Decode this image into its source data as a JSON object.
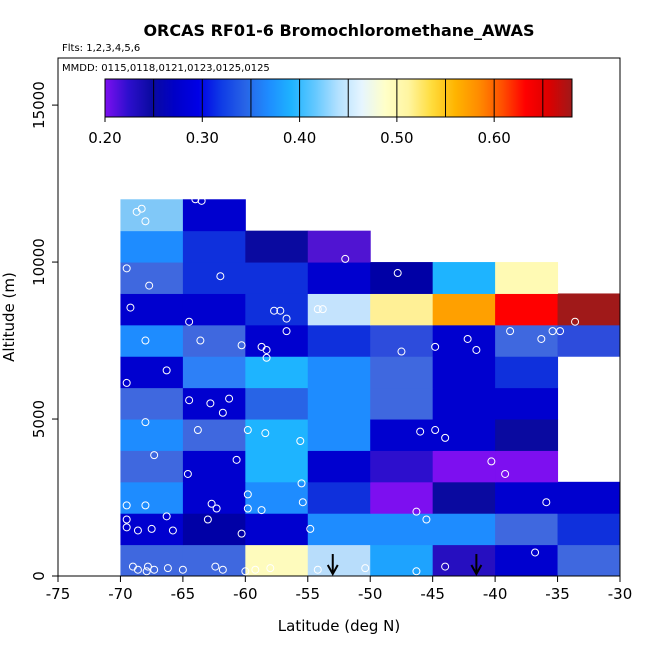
{
  "chart_data": {
    "type": "heatmap",
    "title": "ORCAS RF01-6 Bromochloromethane_AWAS",
    "flights_label": "Flts: 1,2,3,4,5,6",
    "dates_label": "MMDD: 0115,0118,0121,0123,0125,0125",
    "xlabel": "Latitude (deg N)",
    "ylabel": "Altitude (m)",
    "xlim": [
      -75,
      -30
    ],
    "ylim": [
      0,
      16500
    ],
    "x_ticks": [
      "-75",
      "-70",
      "-65",
      "-60",
      "-55",
      "-50",
      "-45",
      "-40",
      "-35",
      "-30"
    ],
    "x_tick_values": [
      -75,
      -70,
      -65,
      -60,
      -55,
      -50,
      -45,
      -40,
      -35,
      -30
    ],
    "y_ticks": [
      "0",
      "5000",
      "10000",
      "15000"
    ],
    "y_tick_values": [
      0,
      5000,
      10000,
      15000
    ],
    "colorbar": {
      "range": [
        0.2,
        0.68
      ],
      "tick_labels": [
        "0.20",
        "0.30",
        "0.40",
        "0.50",
        "0.60"
      ],
      "tick_values": [
        0.2,
        0.3,
        0.4,
        0.5,
        0.6
      ],
      "colors": [
        "#7d0ff0",
        "#2d0fcd",
        "#0a0aa0",
        "#0000c8",
        "#0000e6",
        "#0f3ce6",
        "#2864e6",
        "#1e8cff",
        "#1eb4ff",
        "#64c8ff",
        "#b4e1ff",
        "#e6f5ff",
        "#ffffc8",
        "#fff5a0",
        "#ffdc3c",
        "#ffb400",
        "#ff8c00",
        "#ff5000",
        "#ff0000",
        "#dc0000",
        "#a01919"
      ],
      "breaks": [
        0.2,
        0.25,
        0.3,
        0.35,
        0.4,
        0.45,
        0.5,
        0.55,
        0.6,
        0.65
      ]
    },
    "cell_lat_width": 5,
    "cell_alt_height": 1000,
    "cells": [
      {
        "lat": -70,
        "alt": 0,
        "color": "#3f68df"
      },
      {
        "lat": -65,
        "alt": 0,
        "color": "#3f68df"
      },
      {
        "lat": -60,
        "alt": 0,
        "color": "#fefbbd"
      },
      {
        "lat": -55,
        "alt": 0,
        "color": "#b8ddfb"
      },
      {
        "lat": -50,
        "alt": 0,
        "color": "#1ea3fe"
      },
      {
        "lat": -45,
        "alt": 0,
        "color": "#260fc0"
      },
      {
        "lat": -40,
        "alt": 0,
        "color": "#0000cf"
      },
      {
        "lat": -35,
        "alt": 0,
        "color": "#3f68df"
      },
      {
        "lat": -70,
        "alt": 1000,
        "color": "#0000cf"
      },
      {
        "lat": -65,
        "alt": 1000,
        "color": "#0000a6"
      },
      {
        "lat": -60,
        "alt": 1000,
        "color": "#0000cf"
      },
      {
        "lat": -55,
        "alt": 1000,
        "color": "#1e8cff"
      },
      {
        "lat": -50,
        "alt": 1000,
        "color": "#1e8cff"
      },
      {
        "lat": -45,
        "alt": 1000,
        "color": "#1e8cff"
      },
      {
        "lat": -40,
        "alt": 1000,
        "color": "#3f68df"
      },
      {
        "lat": -35,
        "alt": 1000,
        "color": "#0f30dc"
      },
      {
        "lat": -70,
        "alt": 2000,
        "color": "#1e8cff"
      },
      {
        "lat": -65,
        "alt": 2000,
        "color": "#0000cf"
      },
      {
        "lat": -60,
        "alt": 2000,
        "color": "#1e8cff"
      },
      {
        "lat": -55,
        "alt": 2000,
        "color": "#0f30dc"
      },
      {
        "lat": -50,
        "alt": 2000,
        "color": "#7d0ff0"
      },
      {
        "lat": -45,
        "alt": 2000,
        "color": "#0a0aa0"
      },
      {
        "lat": -40,
        "alt": 2000,
        "color": "#0000cf"
      },
      {
        "lat": -35,
        "alt": 2000,
        "color": "#0000cf"
      },
      {
        "lat": -70,
        "alt": 3000,
        "color": "#3f68df"
      },
      {
        "lat": -65,
        "alt": 3000,
        "color": "#0000cf"
      },
      {
        "lat": -60,
        "alt": 3000,
        "color": "#1eb4ff"
      },
      {
        "lat": -55,
        "alt": 3000,
        "color": "#0000cf"
      },
      {
        "lat": -50,
        "alt": 3000,
        "color": "#2d0fcd"
      },
      {
        "lat": -45,
        "alt": 3000,
        "color": "#7d0ff0"
      },
      {
        "lat": -40,
        "alt": 3000,
        "color": "#7d0ff0"
      },
      {
        "lat": -70,
        "alt": 4000,
        "color": "#1e8cff"
      },
      {
        "lat": -65,
        "alt": 4000,
        "color": "#3f68df"
      },
      {
        "lat": -60,
        "alt": 4000,
        "color": "#1eb4ff"
      },
      {
        "lat": -55,
        "alt": 4000,
        "color": "#1e8cff"
      },
      {
        "lat": -50,
        "alt": 4000,
        "color": "#0000cf"
      },
      {
        "lat": -45,
        "alt": 4000,
        "color": "#0000cf"
      },
      {
        "lat": -40,
        "alt": 4000,
        "color": "#0a0aa0"
      },
      {
        "lat": -70,
        "alt": 5000,
        "color": "#3f68df"
      },
      {
        "lat": -65,
        "alt": 5000,
        "color": "#0000cf"
      },
      {
        "lat": -60,
        "alt": 5000,
        "color": "#2864e6"
      },
      {
        "lat": -55,
        "alt": 5000,
        "color": "#1e8cff"
      },
      {
        "lat": -50,
        "alt": 5000,
        "color": "#3f68df"
      },
      {
        "lat": -45,
        "alt": 5000,
        "color": "#0000cf"
      },
      {
        "lat": -40,
        "alt": 5000,
        "color": "#0000cf"
      },
      {
        "lat": -70,
        "alt": 6000,
        "color": "#0000cf"
      },
      {
        "lat": -65,
        "alt": 6000,
        "color": "#2d80f7"
      },
      {
        "lat": -60,
        "alt": 6000,
        "color": "#1eb4ff"
      },
      {
        "lat": -55,
        "alt": 6000,
        "color": "#1e8cff"
      },
      {
        "lat": -50,
        "alt": 6000,
        "color": "#3f68df"
      },
      {
        "lat": -45,
        "alt": 6000,
        "color": "#0000cf"
      },
      {
        "lat": -40,
        "alt": 6000,
        "color": "#0f30dc"
      },
      {
        "lat": -70,
        "alt": 7000,
        "color": "#1e8cff"
      },
      {
        "lat": -65,
        "alt": 7000,
        "color": "#3f68df"
      },
      {
        "lat": -60,
        "alt": 7000,
        "color": "#0000cf"
      },
      {
        "lat": -55,
        "alt": 7000,
        "color": "#0f30dc"
      },
      {
        "lat": -50,
        "alt": 7000,
        "color": "#2d4cdc"
      },
      {
        "lat": -45,
        "alt": 7000,
        "color": "#0000cf"
      },
      {
        "lat": -40,
        "alt": 7000,
        "color": "#3f68df"
      },
      {
        "lat": -35,
        "alt": 7000,
        "color": "#2d4cdc"
      },
      {
        "lat": -70,
        "alt": 8000,
        "color": "#0000cf"
      },
      {
        "lat": -65,
        "alt": 8000,
        "color": "#0000cf"
      },
      {
        "lat": -60,
        "alt": 8000,
        "color": "#0f30dc"
      },
      {
        "lat": -55,
        "alt": 8000,
        "color": "#c4e3fd"
      },
      {
        "lat": -50,
        "alt": 8000,
        "color": "#fff096"
      },
      {
        "lat": -45,
        "alt": 8000,
        "color": "#ffa000"
      },
      {
        "lat": -40,
        "alt": 8000,
        "color": "#ff0000"
      },
      {
        "lat": -35,
        "alt": 8000,
        "color": "#a01919"
      },
      {
        "lat": -70,
        "alt": 9000,
        "color": "#3f68df"
      },
      {
        "lat": -65,
        "alt": 9000,
        "color": "#0f30dc"
      },
      {
        "lat": -60,
        "alt": 9000,
        "color": "#0f30dc"
      },
      {
        "lat": -55,
        "alt": 9000,
        "color": "#0000cf"
      },
      {
        "lat": -50,
        "alt": 9000,
        "color": "#0000a6"
      },
      {
        "lat": -45,
        "alt": 9000,
        "color": "#1eb4ff"
      },
      {
        "lat": -40,
        "alt": 9000,
        "color": "#fffab4"
      },
      {
        "lat": -70,
        "alt": 10000,
        "color": "#1e8cff"
      },
      {
        "lat": -65,
        "alt": 10000,
        "color": "#0f30dc"
      },
      {
        "lat": -60,
        "alt": 10000,
        "color": "#0a0aa0"
      },
      {
        "lat": -55,
        "alt": 10000,
        "color": "#5014d2"
      },
      {
        "lat": -70,
        "alt": 11000,
        "color": "#80c8f8"
      },
      {
        "lat": -65,
        "alt": 11000,
        "color": "#0000cf"
      }
    ],
    "points": [
      [
        -68.3,
        11700
      ],
      [
        -68.7,
        11600
      ],
      [
        -68.0,
        11300
      ],
      [
        -64.0,
        12000
      ],
      [
        -63.5,
        11950
      ],
      [
        -69.5,
        9800
      ],
      [
        -67.7,
        9250
      ],
      [
        -62.0,
        9550
      ],
      [
        -52.0,
        10100
      ],
      [
        -47.8,
        9650
      ],
      [
        -69.2,
        8550
      ],
      [
        -64.5,
        8100
      ],
      [
        -57.7,
        8450
      ],
      [
        -57.2,
        8450
      ],
      [
        -56.7,
        8200
      ],
      [
        -54.2,
        8500
      ],
      [
        -53.8,
        8500
      ],
      [
        -33.6,
        8100
      ],
      [
        -68.0,
        7500
      ],
      [
        -63.6,
        7500
      ],
      [
        -60.3,
        7350
      ],
      [
        -58.7,
        7300
      ],
      [
        -58.3,
        7200
      ],
      [
        -58.3,
        6950
      ],
      [
        -56.7,
        7800
      ],
      [
        -44.8,
        7300
      ],
      [
        -42.2,
        7550
      ],
      [
        -41.5,
        7200
      ],
      [
        -38.8,
        7800
      ],
      [
        -36.3,
        7550
      ],
      [
        -35.4,
        7800
      ],
      [
        -34.8,
        7800
      ],
      [
        -47.5,
        7150
      ],
      [
        -66.3,
        6550
      ],
      [
        -69.5,
        6150
      ],
      [
        -64.5,
        5600
      ],
      [
        -61.3,
        5650
      ],
      [
        -62.8,
        5500
      ],
      [
        -61.8,
        5200
      ],
      [
        -68.0,
        4900
      ],
      [
        -63.8,
        4650
      ],
      [
        -59.8,
        4650
      ],
      [
        -58.4,
        4550
      ],
      [
        -55.6,
        4300
      ],
      [
        -46.0,
        4600
      ],
      [
        -44.8,
        4650
      ],
      [
        -44.0,
        4400
      ],
      [
        -67.3,
        3850
      ],
      [
        -64.6,
        3250
      ],
      [
        -60.7,
        3700
      ],
      [
        -55.5,
        2950
      ],
      [
        -55.4,
        2350
      ],
      [
        -40.3,
        3650
      ],
      [
        -39.2,
        3250
      ],
      [
        -69.5,
        2250
      ],
      [
        -68.0,
        2250
      ],
      [
        -62.7,
        2300
      ],
      [
        -62.3,
        2150
      ],
      [
        -59.8,
        2600
      ],
      [
        -59.8,
        2150
      ],
      [
        -58.7,
        2100
      ],
      [
        -46.3,
        2050
      ],
      [
        -45.5,
        1800
      ],
      [
        -35.9,
        2350
      ],
      [
        -69.5,
        1800
      ],
      [
        -69.5,
        1550
      ],
      [
        -68.6,
        1450
      ],
      [
        -67.5,
        1500
      ],
      [
        -66.3,
        1900
      ],
      [
        -65.8,
        1450
      ],
      [
        -63.0,
        1800
      ],
      [
        -60.3,
        1350
      ],
      [
        -54.8,
        1500
      ],
      [
        -36.8,
        750
      ],
      [
        -69.0,
        300
      ],
      [
        -68.6,
        200
      ],
      [
        -67.9,
        150
      ],
      [
        -67.8,
        300
      ],
      [
        -67.3,
        200
      ],
      [
        -66.2,
        250
      ],
      [
        -65.0,
        200
      ],
      [
        -62.4,
        300
      ],
      [
        -61.8,
        200
      ],
      [
        -60.0,
        150
      ],
      [
        -59.2,
        200
      ],
      [
        -58.0,
        250
      ],
      [
        -54.2,
        200
      ],
      [
        -50.4,
        250
      ],
      [
        -46.3,
        150
      ],
      [
        -44.0,
        300
      ]
    ],
    "arrows": [
      {
        "lat": -53.0,
        "from_alt": 700,
        "to_alt": 0
      },
      {
        "lat": -41.5,
        "from_alt": 700,
        "to_alt": 0
      }
    ]
  }
}
